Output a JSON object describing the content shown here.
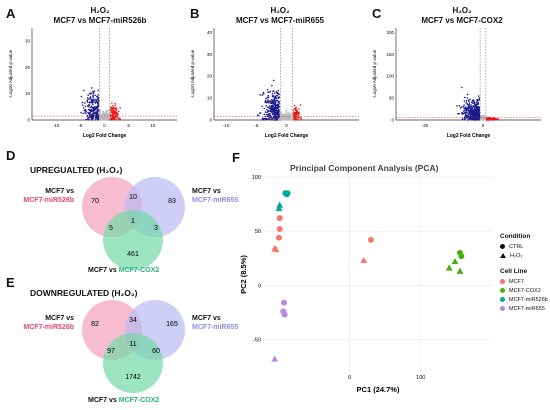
{
  "panels": {
    "A": {
      "label": "A",
      "title1": "H₂O₂",
      "title2": "MCF7 vs MCF7-miR526b",
      "xlabel": "Log2 Fold Change",
      "ylabel": "-Log10 Adjusted p-value",
      "xticks": [
        "-10",
        "-5",
        "0",
        "5",
        "10"
      ],
      "yticks": [
        "0",
        "10",
        "20",
        "30"
      ]
    },
    "B": {
      "label": "B",
      "title1": "H₂O₂",
      "title2": "MCF7 vs MCF7-miR655",
      "xlabel": "Log2 Fold Change",
      "ylabel": "-Log10 Adjusted p-value",
      "xticks": [
        "-10",
        "-5",
        "0"
      ],
      "yticks": [
        "0",
        "10",
        "20",
        "30",
        "40"
      ]
    },
    "C": {
      "label": "C",
      "title1": "H₂O₂",
      "title2": "MCF7 vs MCF7-COX2",
      "xlabel": "Log2 Fold Change",
      "ylabel": "-Log10 Adjusted p-value",
      "xticks": [
        "-20",
        "0"
      ],
      "yticks": [
        "0",
        "50",
        "100",
        "150",
        "200"
      ]
    },
    "D": {
      "label": "D",
      "title": "UPREGUALTED (H₂O₂)",
      "left_label1": "MCF7 vs",
      "left_label2": "MCF7-miR526b",
      "right_label1": "MCF7 vs",
      "right_label2": "MCF7-miR655",
      "bottom_label1": "MCF7 vs ",
      "bottom_label2": "MCF7-COX2",
      "counts": {
        "a_only": "70",
        "ab": "10",
        "b_only": "83",
        "ac": "5",
        "abc": "1",
        "bc": "3",
        "c_only": "461"
      }
    },
    "E": {
      "label": "E",
      "title": "DOWNREGULATED (H₂O₂)",
      "left_label1": "MCF7 vs",
      "left_label2": "MCF7-miR526b",
      "right_label1": "MCF7 vs",
      "right_label2": "MCF7-miR655",
      "bottom_label1": "MCF7 vs ",
      "bottom_label2": "MCF7-COX2",
      "counts": {
        "a_only": "82",
        "ab": "34",
        "b_only": "165",
        "ac": "97",
        "abc": "11",
        "bc": "60",
        "c_only": "1742"
      }
    },
    "F": {
      "label": "F",
      "title": "Principal Component Analysis (PCA)",
      "xlabel": "PC1 (24.7%)",
      "ylabel": "PC2 (8.5%)",
      "xticks": [
        "0",
        "100"
      ],
      "yticks": [
        "100",
        "50",
        "0",
        "-50"
      ]
    }
  },
  "colors": {
    "down": "#1a1a8c",
    "up": "#e41a1c",
    "ns": "#bdbdbd",
    "miR526b_text": "#e0457b",
    "miR655_text": "#8c8ce6",
    "cox2_text": "#27b27a",
    "circle_a": "#f4a6bf",
    "circle_b": "#b9b9f2",
    "circle_c": "#74d9a9",
    "MCF7": "#f8766d",
    "MCF7-COX2": "#4caf10",
    "MCF7-miR526b": "#00a99d",
    "MCF7-miR655": "#b98be6"
  },
  "legend": {
    "condition_title": "Condition",
    "conditions": [
      "CTRL",
      "H₂O₂"
    ],
    "cellline_title": "Cell Line",
    "celllines": [
      "MCF7",
      "MCF7-COX2",
      "MCF7-miR526b",
      "MCF7-miR655"
    ]
  },
  "chart_data": [
    {
      "type": "scatter",
      "name": "volcano A",
      "xlabel": "Log2 Fold Change",
      "ylabel": "-Log10 Adjusted p-value",
      "xlim": [
        -15,
        15
      ],
      "ylim": [
        0,
        35
      ]
    },
    {
      "type": "scatter",
      "name": "volcano B",
      "xlabel": "Log2 Fold Change",
      "ylabel": "-Log10 Adjusted p-value",
      "xlim": [
        -12,
        12
      ],
      "ylim": [
        0,
        42
      ]
    },
    {
      "type": "scatter",
      "name": "volcano C",
      "xlabel": "Log2 Fold Change",
      "ylabel": "-Log10 Adjusted p-value",
      "xlim": [
        -30,
        20
      ],
      "ylim": [
        0,
        210
      ]
    },
    {
      "type": "scatter",
      "name": "PCA",
      "xlabel": "PC1 (24.7%)",
      "ylabel": "PC2 (8.5%)",
      "xlim": [
        -120,
        200
      ],
      "ylim": [
        -80,
        100
      ],
      "points": [
        {
          "cell": "MCF7-miR526b",
          "cond": "CTRL",
          "x": -90,
          "y": 85
        },
        {
          "cell": "MCF7-miR526b",
          "cond": "CTRL",
          "x": -88,
          "y": 84
        },
        {
          "cell": "MCF7-miR526b",
          "cond": "CTRL",
          "x": -87,
          "y": 85
        },
        {
          "cell": "MCF7-miR526b",
          "cond": "H2O2",
          "x": -98,
          "y": 74
        },
        {
          "cell": "MCF7-miR526b",
          "cond": "H2O2",
          "x": -99,
          "y": 71
        },
        {
          "cell": "MCF7",
          "cond": "CTRL",
          "x": -98,
          "y": 62
        },
        {
          "cell": "MCF7",
          "cond": "CTRL",
          "x": -98,
          "y": 52
        },
        {
          "cell": "MCF7",
          "cond": "CTRL",
          "x": -99,
          "y": 44
        },
        {
          "cell": "MCF7",
          "cond": "H2O2",
          "x": -105,
          "y": 34
        },
        {
          "cell": "MCF7",
          "cond": "H2O2",
          "x": -103,
          "y": 33
        },
        {
          "cell": "MCF7",
          "cond": "CTRL",
          "x": 30,
          "y": 42
        },
        {
          "cell": "MCF7",
          "cond": "H2O2",
          "x": 20,
          "y": 23
        },
        {
          "cell": "MCF7-COX2",
          "cond": "CTRL",
          "x": 155,
          "y": 30
        },
        {
          "cell": "MCF7-COX2",
          "cond": "CTRL",
          "x": 157,
          "y": 27
        },
        {
          "cell": "MCF7-COX2",
          "cond": "H2O2",
          "x": 148,
          "y": 22
        },
        {
          "cell": "MCF7-COX2",
          "cond": "H2O2",
          "x": 140,
          "y": 16
        },
        {
          "cell": "MCF7-COX2",
          "cond": "H2O2",
          "x": 155,
          "y": 13
        },
        {
          "cell": "MCF7-miR655",
          "cond": "CTRL",
          "x": -92,
          "y": -16
        },
        {
          "cell": "MCF7-miR655",
          "cond": "CTRL",
          "x": -93,
          "y": -24
        },
        {
          "cell": "MCF7-miR655",
          "cond": "CTRL",
          "x": -91,
          "y": -27
        },
        {
          "cell": "MCF7-miR655",
          "cond": "H2O2",
          "x": -105,
          "y": -68
        }
      ]
    }
  ]
}
